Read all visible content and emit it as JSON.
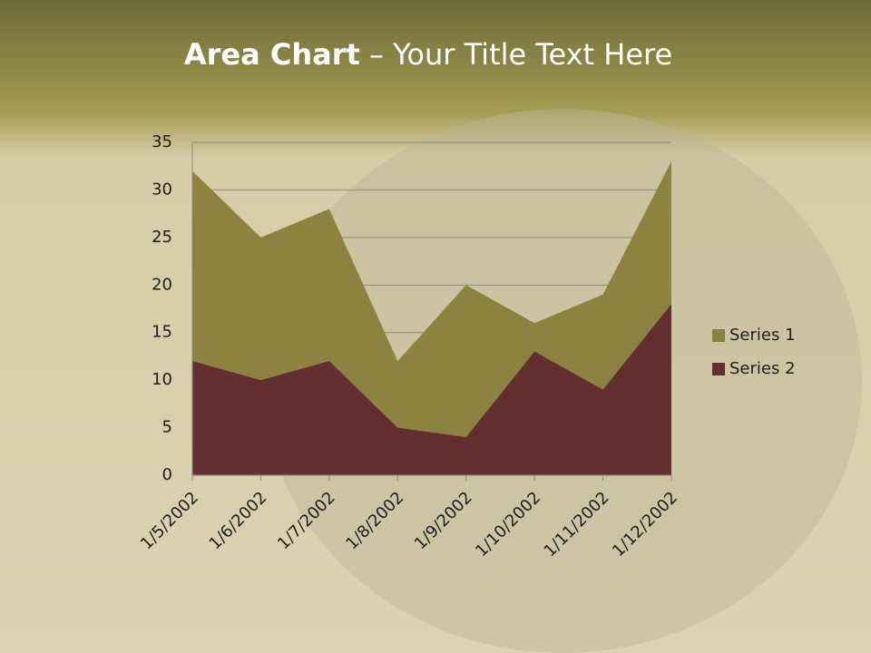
{
  "chart_data": {
    "type": "area",
    "title_parts": [
      "Area Chart",
      "– Your Title Text Here"
    ],
    "categories": [
      "1/5/2002",
      "1/6/2002",
      "1/7/2002",
      "1/8/2002",
      "1/9/2002",
      "1/10/2002",
      "1/11/2002",
      "1/12/2002"
    ],
    "series": [
      {
        "name": "Series 1",
        "color": "#8c8341",
        "values": [
          32,
          25,
          28,
          12,
          20,
          16,
          19,
          33
        ]
      },
      {
        "name": "Series 2",
        "color": "#632f31",
        "values": [
          12,
          10,
          12,
          5,
          4,
          13,
          9,
          18
        ]
      }
    ],
    "ylim": [
      0,
      35
    ],
    "yticks": [
      0,
      5,
      10,
      15,
      20,
      25,
      30,
      35
    ],
    "grid": true,
    "legend": "right"
  }
}
